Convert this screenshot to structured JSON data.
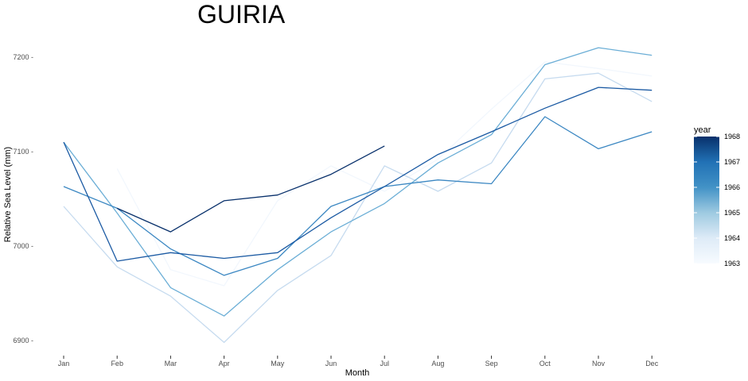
{
  "chart_data": {
    "type": "line",
    "title": "GUIRIA",
    "xlabel": "Month",
    "ylabel": "Relative Sea Level (mm)",
    "categories": [
      "Jan",
      "Feb",
      "Mar",
      "Apr",
      "May",
      "Jun",
      "Jul",
      "Aug",
      "Sep",
      "Oct",
      "Nov",
      "Dec"
    ],
    "ylim": [
      6885,
      7225
    ],
    "yticks": [
      6900,
      7000,
      7100,
      7200
    ],
    "ytick_labels": [
      "6900 -",
      "7000 -",
      "7100 -",
      "7200 -"
    ],
    "grid": false,
    "legend": {
      "title": "year",
      "position": "right",
      "type": "colorbar",
      "range": [
        1963,
        1968
      ],
      "ticks": [
        "1963",
        "1964",
        "1965",
        "1966",
        "1967",
        "1968"
      ],
      "color_low": "#f7fbff",
      "color_high": "#08306b"
    },
    "series": [
      {
        "year": 1963,
        "color": "#f2f7fd",
        "values": [
          null,
          7082,
          6975,
          6958,
          7048,
          7085,
          7058,
          7092,
          7145,
          7195,
          7188,
          7180
        ]
      },
      {
        "year": 1964,
        "color": "#c6dbef",
        "values": [
          7042,
          6978,
          6947,
          6898,
          6953,
          6990,
          7085,
          7058,
          7088,
          7177,
          7183,
          7153
        ]
      },
      {
        "year": 1965,
        "color": "#6baed6",
        "values": [
          7110,
          7035,
          6956,
          6926,
          6975,
          7015,
          7045,
          7088,
          7118,
          7192,
          7210,
          7202
        ]
      },
      {
        "year": 1966,
        "color": "#3b87c2",
        "values": [
          7063,
          7040,
          6997,
          6969,
          6987,
          7042,
          7063,
          7070,
          7066,
          7137,
          7103,
          7121
        ]
      },
      {
        "year": 1967,
        "color": "#1b5aa3",
        "values": [
          7110,
          6984,
          6993,
          6987,
          6993,
          7030,
          7063,
          7097,
          7121,
          7146,
          7168,
          7165
        ]
      },
      {
        "year": 1968,
        "color": "#08306b",
        "values": [
          null,
          7040,
          7015,
          7048,
          7054,
          7076,
          7106,
          null,
          null,
          null,
          null,
          null
        ]
      }
    ]
  }
}
